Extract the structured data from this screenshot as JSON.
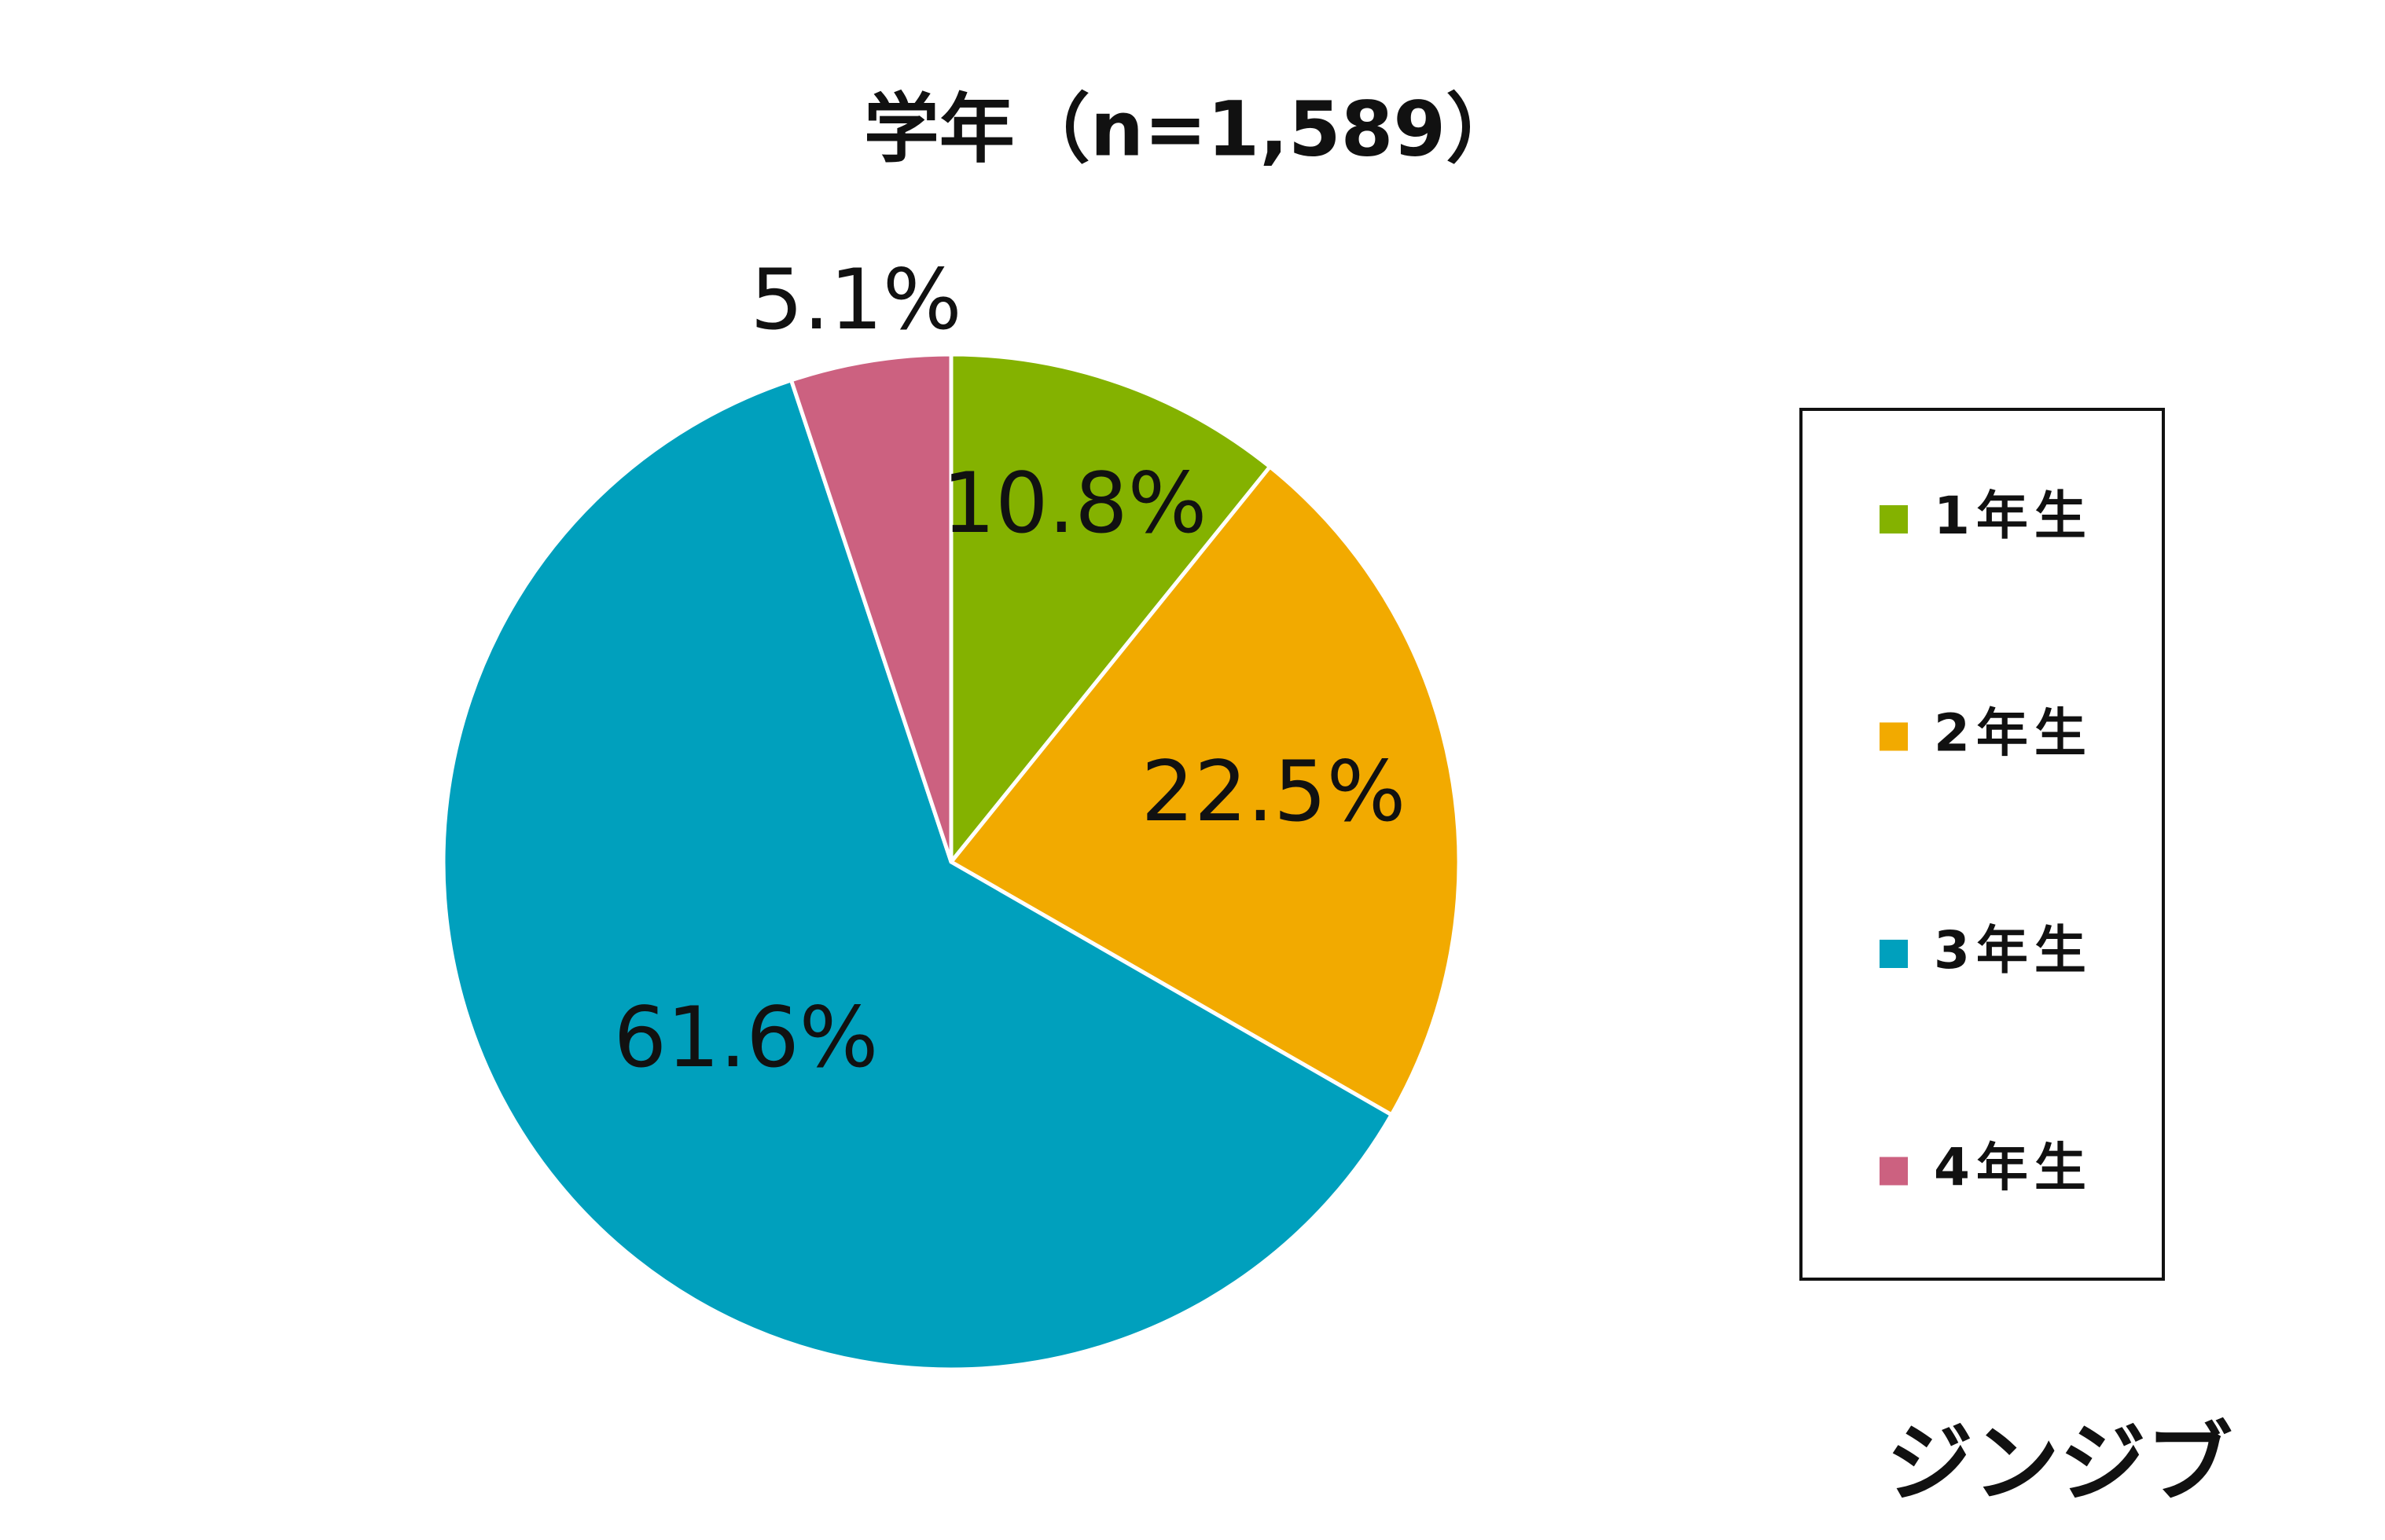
{
  "chart_data": {
    "type": "pie",
    "title": "学年（n=1,589）",
    "categories": [
      "1年生",
      "2年生",
      "3年生",
      "4年生"
    ],
    "values": [
      10.8,
      22.5,
      61.6,
      5.1
    ],
    "value_labels": [
      "10.8%",
      "22.5%",
      "61.6%",
      "5.1%"
    ],
    "colors": [
      "#84b200",
      "#f2aa00",
      "#00a0bd",
      "#cc6180"
    ],
    "legend": "right"
  },
  "brand": "ジンジブ"
}
